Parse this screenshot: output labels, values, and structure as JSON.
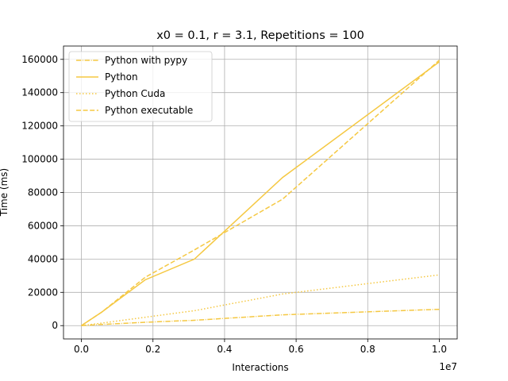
{
  "chart_data": {
    "type": "line",
    "title": "x0 = 0.1, r = 3.1, Repetitions = 100",
    "xlabel": "Interactions",
    "ylabel": "Time (ms)",
    "x_offset_label": "1e7",
    "xlim": [
      -0.05,
      1.05
    ],
    "ylim": [
      -8000,
      168000
    ],
    "xticks": [
      0.0,
      0.2,
      0.4,
      0.6,
      0.8,
      1.0
    ],
    "xtick_labels": [
      "0.0",
      "0.2",
      "0.4",
      "0.6",
      "0.8",
      "1.0"
    ],
    "yticks": [
      0,
      20000,
      40000,
      60000,
      80000,
      100000,
      120000,
      140000,
      160000
    ],
    "ytick_labels": [
      "0",
      "20000",
      "40000",
      "60000",
      "80000",
      "100000",
      "120000",
      "140000",
      "160000"
    ],
    "grid": true,
    "legend_position": "top-left",
    "color": "#f5c842",
    "series": [
      {
        "name": "Python with pypy",
        "dash": "dashdot",
        "x": [
          0,
          0.056,
          0.178,
          0.316,
          0.562,
          1.0
        ],
        "y": [
          0,
          700,
          2000,
          3200,
          6500,
          9800
        ]
      },
      {
        "name": "Python",
        "dash": "solid",
        "x": [
          0,
          0.056,
          0.178,
          0.316,
          0.562,
          1.0
        ],
        "y": [
          0,
          8000,
          27500,
          40000,
          89000,
          158500
        ]
      },
      {
        "name": "Python Cuda",
        "dash": "dotted",
        "x": [
          0,
          0.056,
          0.178,
          0.316,
          0.562,
          1.0
        ],
        "y": [
          0,
          1500,
          5000,
          9000,
          19000,
          30500
        ]
      },
      {
        "name": "Python executable",
        "dash": "dashed",
        "x": [
          0,
          0.056,
          0.178,
          0.316,
          0.562,
          1.0
        ],
        "y": [
          0,
          8000,
          29000,
          45500,
          76000,
          159500
        ]
      }
    ]
  }
}
